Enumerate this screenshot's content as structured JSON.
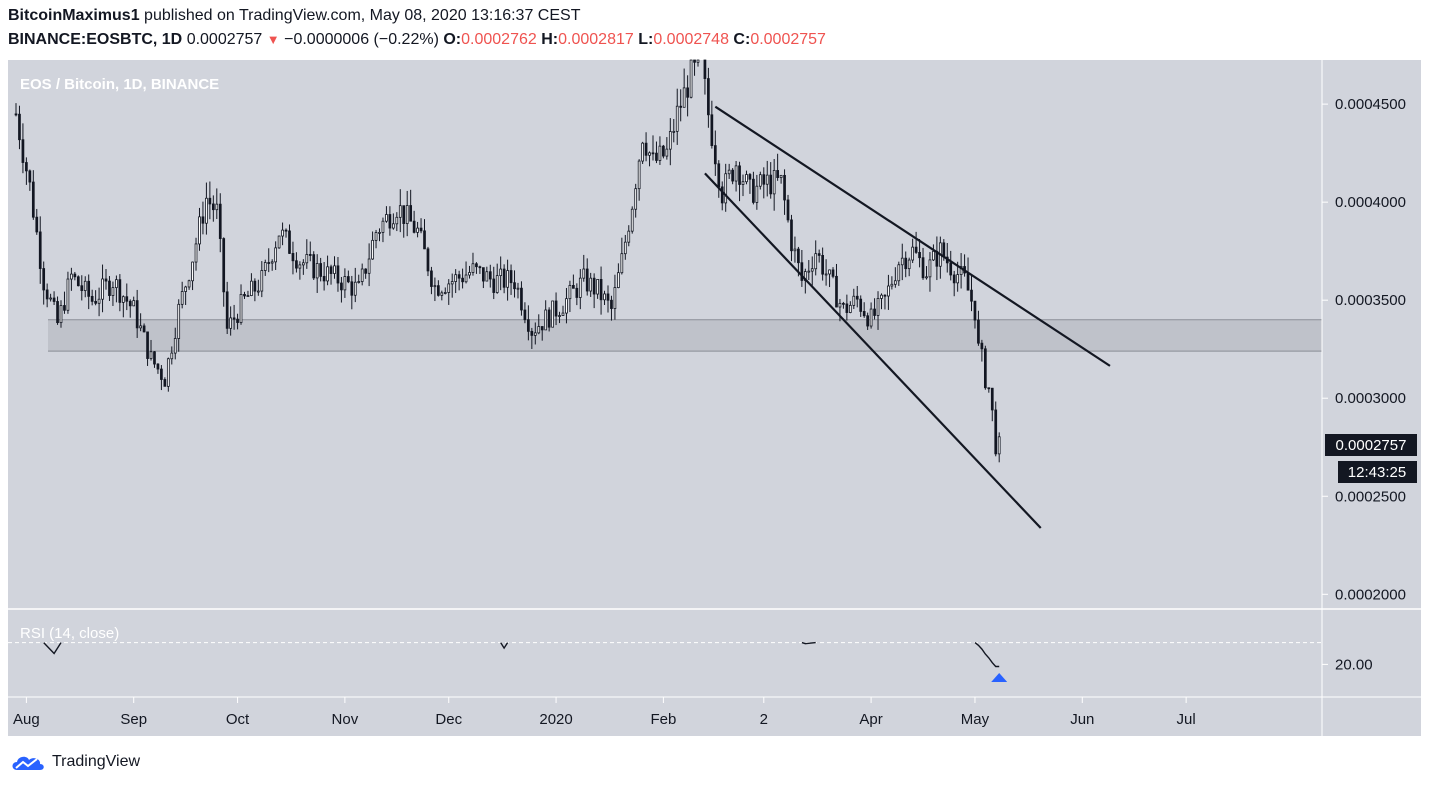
{
  "header": {
    "author": "BitcoinMaximus1",
    "published_text": "published on TradingView.com, May 08, 2020 13:16:37 CEST",
    "symbol": "BINANCE:EOSBTC, 1D",
    "last": "0.0002757",
    "change": "−0.0000006 (−0.22%)",
    "o_label": "O:",
    "o_value": "0.0002762",
    "h_label": "H:",
    "h_value": "0.0002817",
    "l_label": "L:",
    "l_value": "0.0002748",
    "c_label": "C:",
    "c_value": "0.0002757"
  },
  "brand": {
    "name": "TradingView"
  },
  "colors": {
    "background": "#d1d4dc",
    "candle": "#131722",
    "sell_arrow": "#ef5350",
    "signal": "#2962ff"
  },
  "chart_data": {
    "type": "candlestick",
    "title": "EOS / Bitcoin, 1D, BINANCE",
    "x_ticks": [
      "Aug",
      "Sep",
      "Oct",
      "Nov",
      "Dec",
      "2020",
      "Feb",
      "2",
      "Apr",
      "May",
      "Jun",
      "Jul"
    ],
    "y_ticks": [
      "0.0004500",
      "0.0004000",
      "0.0003500",
      "0.0003000",
      "0.0002500",
      "0.0002000"
    ],
    "ylim": [
      0.0001925,
      0.0004725
    ],
    "x_range": [
      "2019-07-29",
      "2020-07-31"
    ],
    "last_price_label": "0.0002757",
    "countdown_label": "12:43:25",
    "support_zone": [
      0.000324,
      0.00034
    ],
    "trendlines": [
      {
        "from": [
          "2020-02-16",
          0.0004487
        ],
        "to": [
          "2020-06-09",
          0.0003165
        ]
      },
      {
        "from": [
          "2020-02-13",
          0.0004147
        ],
        "to": [
          "2020-05-20",
          0.0002338
        ]
      }
    ],
    "closes": [
      {
        "date": "2019-07-29",
        "close": 0.000445
      },
      {
        "date": "2019-08-02",
        "close": 0.000408
      },
      {
        "date": "2019-08-06",
        "close": 0.00036
      },
      {
        "date": "2019-08-10",
        "close": 0.000338
      },
      {
        "date": "2019-08-14",
        "close": 0.000362
      },
      {
        "date": "2019-08-20",
        "close": 0.00035
      },
      {
        "date": "2019-08-26",
        "close": 0.00036
      },
      {
        "date": "2019-09-01",
        "close": 0.000345
      },
      {
        "date": "2019-09-06",
        "close": 0.00032
      },
      {
        "date": "2019-09-10",
        "close": 0.00031
      },
      {
        "date": "2019-09-14",
        "close": 0.000345
      },
      {
        "date": "2019-09-18",
        "close": 0.000372
      },
      {
        "date": "2019-09-22",
        "close": 0.000402
      },
      {
        "date": "2019-09-25",
        "close": 0.000395
      },
      {
        "date": "2019-09-28",
        "close": 0.000335
      },
      {
        "date": "2019-10-03",
        "close": 0.00035
      },
      {
        "date": "2019-10-08",
        "close": 0.00036
      },
      {
        "date": "2019-10-13",
        "close": 0.000385
      },
      {
        "date": "2019-10-19",
        "close": 0.00037
      },
      {
        "date": "2019-10-25",
        "close": 0.000365
      },
      {
        "date": "2019-10-31",
        "close": 0.00036
      },
      {
        "date": "2019-11-05",
        "close": 0.000355
      },
      {
        "date": "2019-11-10",
        "close": 0.000385
      },
      {
        "date": "2019-11-16",
        "close": 0.000398
      },
      {
        "date": "2019-11-22",
        "close": 0.000385
      },
      {
        "date": "2019-11-27",
        "close": 0.000357
      },
      {
        "date": "2019-12-02",
        "close": 0.00036
      },
      {
        "date": "2019-12-08",
        "close": 0.000365
      },
      {
        "date": "2019-12-14",
        "close": 0.00036
      },
      {
        "date": "2019-12-20",
        "close": 0.00036
      },
      {
        "date": "2019-12-25",
        "close": 0.000335
      },
      {
        "date": "2019-12-30",
        "close": 0.000342
      },
      {
        "date": "2020-01-04",
        "close": 0.00035
      },
      {
        "date": "2020-01-09",
        "close": 0.00036
      },
      {
        "date": "2020-01-13",
        "close": 0.000355
      },
      {
        "date": "2020-01-17",
        "close": 0.000345
      },
      {
        "date": "2020-01-20",
        "close": 0.00037
      },
      {
        "date": "2020-01-23",
        "close": 0.0004
      },
      {
        "date": "2020-01-26",
        "close": 0.000435
      },
      {
        "date": "2020-01-29",
        "close": 0.00042
      },
      {
        "date": "2020-02-02",
        "close": 0.000425
      },
      {
        "date": "2020-02-05",
        "close": 0.000445
      },
      {
        "date": "2020-02-09",
        "close": 0.000465
      },
      {
        "date": "2020-02-12",
        "close": 0.00047
      },
      {
        "date": "2020-02-14",
        "close": 0.000445
      },
      {
        "date": "2020-02-18",
        "close": 0.000405
      },
      {
        "date": "2020-02-22",
        "close": 0.00042
      },
      {
        "date": "2020-02-26",
        "close": 0.000405
      },
      {
        "date": "2020-03-02",
        "close": 0.00041
      },
      {
        "date": "2020-03-06",
        "close": 0.00041
      },
      {
        "date": "2020-03-09",
        "close": 0.00038
      },
      {
        "date": "2020-03-12",
        "close": 0.00036
      },
      {
        "date": "2020-03-16",
        "close": 0.000375
      },
      {
        "date": "2020-03-20",
        "close": 0.00036
      },
      {
        "date": "2020-03-24",
        "close": 0.000345
      },
      {
        "date": "2020-03-28",
        "close": 0.00035
      },
      {
        "date": "2020-04-01",
        "close": 0.00034
      },
      {
        "date": "2020-04-05",
        "close": 0.00035
      },
      {
        "date": "2020-04-09",
        "close": 0.00037
      },
      {
        "date": "2020-04-13",
        "close": 0.000375
      },
      {
        "date": "2020-04-17",
        "close": 0.000365
      },
      {
        "date": "2020-04-21",
        "close": 0.000375
      },
      {
        "date": "2020-04-25",
        "close": 0.000365
      },
      {
        "date": "2020-04-28",
        "close": 0.00036
      },
      {
        "date": "2020-05-01",
        "close": 0.000345
      },
      {
        "date": "2020-05-02",
        "close": 0.000325
      },
      {
        "date": "2020-05-03",
        "close": 0.00032
      },
      {
        "date": "2020-05-04",
        "close": 0.00031
      },
      {
        "date": "2020-05-05",
        "close": 0.000305
      },
      {
        "date": "2020-05-06",
        "close": 0.000292
      },
      {
        "date": "2020-05-07",
        "close": 0.000276
      },
      {
        "date": "2020-05-08",
        "close": 0.0002757
      }
    ],
    "rsi": {
      "label": "RSI (14, close)",
      "y_tick": "20.00",
      "ylim": [
        14,
        30
      ],
      "points": [
        {
          "date": "2019-08-06",
          "value": 24
        },
        {
          "date": "2019-08-09",
          "value": 22
        },
        {
          "date": "2019-08-11",
          "value": 24
        },
        {
          "date": "2019-12-16",
          "value": 24
        },
        {
          "date": "2019-12-17",
          "value": 23
        },
        {
          "date": "2019-12-18",
          "value": 24
        },
        {
          "date": "2020-03-12",
          "value": 24
        },
        {
          "date": "2020-03-13",
          "value": 23.8
        },
        {
          "date": "2020-03-16",
          "value": 24
        },
        {
          "date": "2020-05-01",
          "value": 24
        },
        {
          "date": "2020-05-02",
          "value": 23.5
        },
        {
          "date": "2020-05-03",
          "value": 22.8
        },
        {
          "date": "2020-05-04",
          "value": 21.9
        },
        {
          "date": "2020-05-05",
          "value": 21.2
        },
        {
          "date": "2020-05-06",
          "value": 20.3
        },
        {
          "date": "2020-05-07",
          "value": 19.6
        },
        {
          "date": "2020-05-08",
          "value": 19.6
        }
      ],
      "signal_date": "2020-05-08"
    }
  }
}
